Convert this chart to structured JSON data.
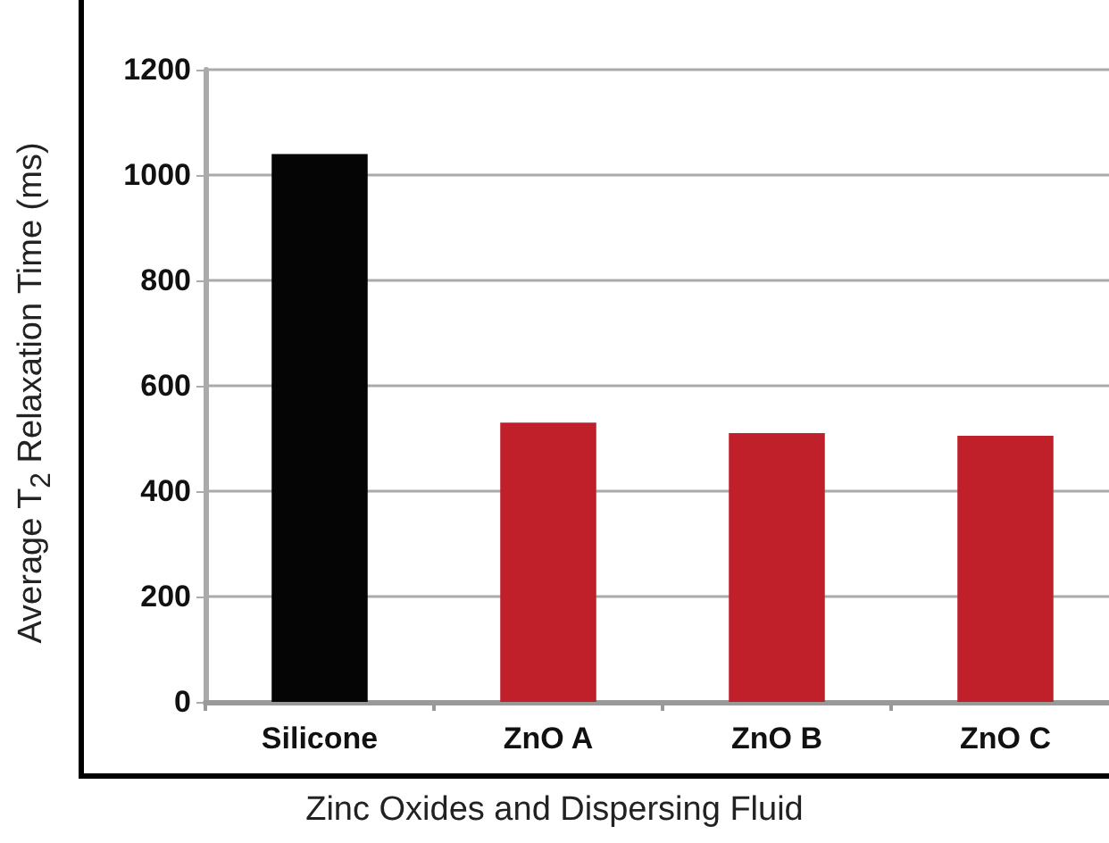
{
  "chart_data": {
    "type": "bar",
    "xlabel": "Zinc Oxides and Dispersing Fluid",
    "ylabel": "Average T$_{2}$ Relaxation Time (ms)",
    "categories": [
      "Silicone",
      "ZnO A",
      "ZnO B",
      "ZnO C"
    ],
    "values": [
      1040,
      530,
      510,
      505
    ],
    "colors": [
      "#050505",
      "#c0202a",
      "#c0202a",
      "#c0202a"
    ],
    "ylim": [
      0,
      1200
    ],
    "yticks": [
      0,
      200,
      400,
      600,
      800,
      1000,
      1200
    ],
    "grid": "y"
  }
}
